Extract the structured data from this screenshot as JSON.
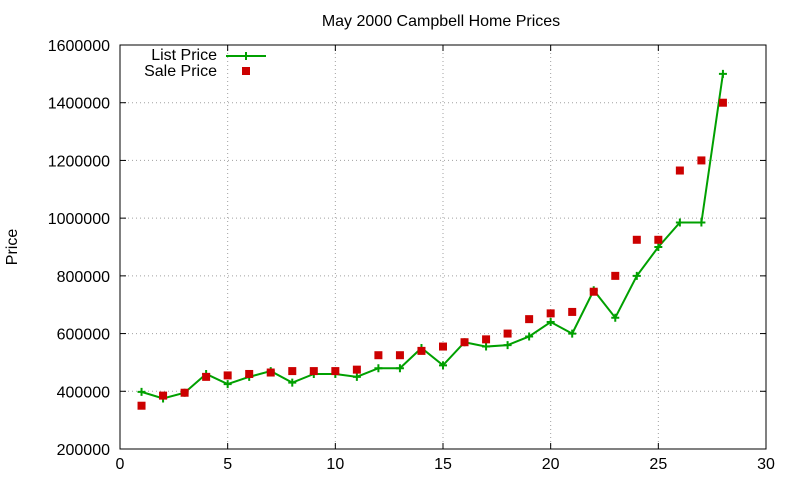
{
  "chart_data": {
    "type": "line",
    "title": "May 2000 Campbell Home Prices",
    "xlabel": "",
    "ylabel": "Price",
    "xlim": [
      0,
      30
    ],
    "ylim": [
      200000,
      1600000
    ],
    "xticks": [
      0,
      5,
      10,
      15,
      20,
      25,
      30
    ],
    "yticks": [
      200000,
      400000,
      600000,
      800000,
      1000000,
      1200000,
      1400000,
      1600000
    ],
    "xtick_labels": [
      "0",
      "5",
      "10",
      "15",
      "20",
      "25",
      "30"
    ],
    "ytick_labels": [
      "200000",
      "400000",
      "600000",
      "800000",
      "1000000",
      "1200000",
      "1400000",
      "1600000"
    ],
    "grid": true,
    "legend_position": "top-left",
    "x": [
      1,
      2,
      3,
      4,
      5,
      6,
      7,
      8,
      9,
      10,
      11,
      12,
      13,
      14,
      15,
      16,
      17,
      18,
      19,
      20,
      21,
      22,
      23,
      24,
      25,
      26,
      27,
      28
    ],
    "series": [
      {
        "name": "List Price",
        "style": "line-with-plus-markers",
        "color": "#00a000",
        "values": [
          398000,
          375000,
          395000,
          460000,
          425000,
          450000,
          470000,
          430000,
          460000,
          460000,
          450000,
          480000,
          480000,
          550000,
          490000,
          570000,
          555000,
          560000,
          590000,
          640000,
          600000,
          750000,
          655000,
          800000,
          900000,
          985000,
          985000,
          1500000
        ]
      },
      {
        "name": "Sale Price",
        "style": "square-markers",
        "color": "#cc0000",
        "values": [
          350000,
          385000,
          395000,
          450000,
          455000,
          460000,
          465000,
          470000,
          470000,
          470000,
          475000,
          525000,
          525000,
          540000,
          555000,
          570000,
          580000,
          600000,
          650000,
          670000,
          675000,
          745000,
          800000,
          925000,
          925000,
          1165000,
          1200000,
          1400000
        ]
      }
    ]
  }
}
